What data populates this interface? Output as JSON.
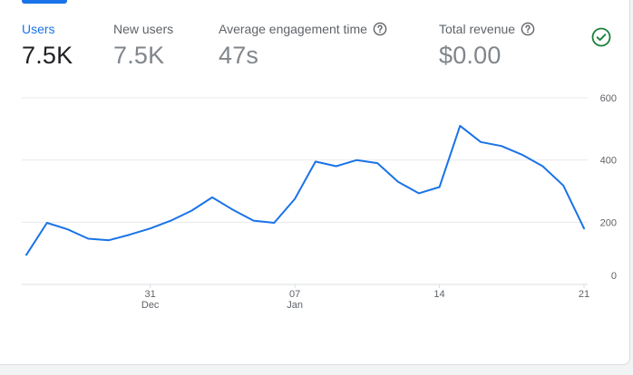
{
  "metrics": [
    {
      "label": "Users",
      "value": "7.5K",
      "active": true,
      "help": false
    },
    {
      "label": "New users",
      "value": "7.5K",
      "active": false,
      "help": false
    },
    {
      "label": "Average engagement time",
      "value": "47s",
      "active": false,
      "help": true
    },
    {
      "label": "Total revenue",
      "value": "$0.00",
      "active": false,
      "help": true
    }
  ],
  "status_icon": "check-circle-icon",
  "colors": {
    "accent": "#1a73e8",
    "line": "#1a73e8",
    "success": "#188038"
  },
  "chart_data": {
    "type": "line",
    "title": "",
    "xlabel": "",
    "ylabel": "",
    "ylim": [
      0,
      600
    ],
    "y_ticks": [
      0,
      200,
      400,
      600
    ],
    "y_axis_side": "right",
    "grid": true,
    "x_ticks": [
      {
        "day": "31",
        "month": "Dec"
      },
      {
        "day": "07",
        "month": "Jan"
      },
      {
        "day": "14",
        "month": ""
      },
      {
        "day": "21",
        "month": ""
      }
    ],
    "x": [
      "Dec 25",
      "Dec 26",
      "Dec 27",
      "Dec 28",
      "Dec 29",
      "Dec 30",
      "Dec 31",
      "Jan 1",
      "Jan 2",
      "Jan 3",
      "Jan 4",
      "Jan 5",
      "Jan 6",
      "Jan 7",
      "Jan 8",
      "Jan 9",
      "Jan 10",
      "Jan 11",
      "Jan 12",
      "Jan 13",
      "Jan 14",
      "Jan 15",
      "Jan 16",
      "Jan 17",
      "Jan 18",
      "Jan 19",
      "Jan 20",
      "Jan 21"
    ],
    "series": [
      {
        "name": "",
        "values": [
          95,
          198,
          177,
          147,
          142,
          160,
          180,
          205,
          237,
          280,
          240,
          205,
          198,
          275,
          395,
          380,
          400,
          390,
          330,
          293,
          313,
          510,
          458,
          445,
          417,
          380,
          318,
          180
        ]
      }
    ]
  }
}
